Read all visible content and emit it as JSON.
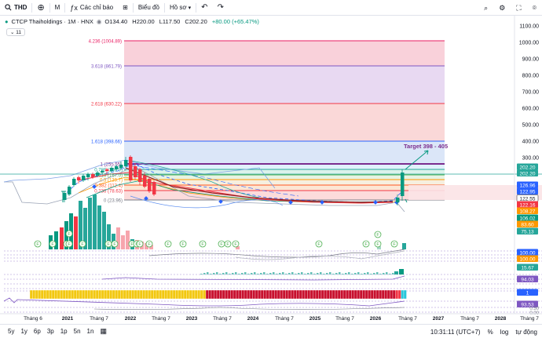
{
  "toolbar": {
    "symbol": "THD",
    "interval": "M",
    "indicators_label": "Các chỉ báo",
    "chart_type_label": "Biểu đồ",
    "profile_label": "Hồ sơ"
  },
  "legend": {
    "title": "CTCP Thaiholdings · 1M · HNX",
    "open": "O134.40",
    "high": "H220.00",
    "low": "L117.50",
    "close": "C202.20",
    "change": "+80.00 (+65.47%)",
    "badge": "11"
  },
  "colors": {
    "up": "#089981",
    "down": "#f23645",
    "price_line": "#26a69a",
    "target": "#7b2d8e"
  },
  "price_axis": {
    "ticks": [
      "1100.00",
      "1000.00",
      "900.00",
      "800.00",
      "700.00",
      "600.00",
      "500.00",
      "400.00",
      "300.00"
    ],
    "labels": [
      {
        "text": "202.20",
        "bg": "#26a69a"
      },
      {
        "text": "202.20",
        "bg": "#26a69a"
      },
      {
        "text": "126.96",
        "bg": "#2962ff"
      },
      {
        "text": "122.95",
        "bg": "#2962ff"
      },
      {
        "text": "122.55",
        "bg": "#ffffff"
      },
      {
        "text": "122.16",
        "bg": "#f23645"
      },
      {
        "text": "108.27",
        "bg": "#ff9800"
      },
      {
        "text": "106.02",
        "bg": "#089981"
      },
      {
        "text": "83.60",
        "bg": "#ff9800"
      },
      {
        "text": "75.13",
        "bg": "#26a69a"
      },
      {
        "text": "100.00",
        "bg": "#2962ff"
      },
      {
        "text": "100.00",
        "bg": "#ff9800"
      },
      {
        "text": "15.67",
        "bg": "#26a69a"
      },
      {
        "text": "94.03",
        "bg": "#7e57c2"
      },
      {
        "text": "1",
        "bg": "#2962ff"
      },
      {
        "text": "93.53",
        "bg": "#7e57c2"
      }
    ],
    "bottom_ticks": [
      "0.50",
      "0.00"
    ]
  },
  "fib_levels": [
    {
      "label": "4.236 (1004.89)"
    },
    {
      "label": "3.618 (861.79)"
    },
    {
      "label": "2.618 (630.22)"
    },
    {
      "label": "1.618 (398.66)"
    },
    {
      "label": "1 (255.55)"
    },
    {
      "label": "0.786 (205.9)"
    },
    {
      "label": "0.618 (167.0)"
    },
    {
      "label": "0.5 (139.7)"
    },
    {
      "label": "0.382 (112.4)"
    },
    {
      "label": "0.236 (78.63)"
    },
    {
      "label": "0 (23.96)"
    }
  ],
  "annotation": {
    "target": "Target 398 - 405"
  },
  "time_axis": [
    "Tháng 6",
    "2021",
    "Tháng 7",
    "2022",
    "Tháng 7",
    "2023",
    "Tháng 7",
    "2024",
    "Tháng 7",
    "2025",
    "Tháng 7",
    "2026",
    "Tháng 7",
    "2027",
    "Tháng 7",
    "2028",
    "Tháng 7"
  ],
  "bottombar": {
    "ranges": [
      "5y",
      "1y",
      "6p",
      "3p",
      "1p",
      "5n",
      "1n"
    ],
    "time": "10:31:11 (UTC+7)",
    "pct": "%",
    "log": "log",
    "auto": "tự động"
  }
}
